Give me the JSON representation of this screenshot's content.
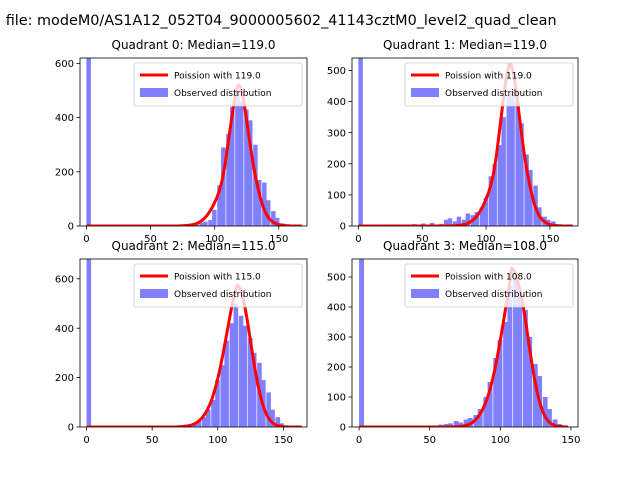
{
  "figure": {
    "suptitle": "n file: modeM0/AS1A12_052T04_9000005602_41143cztM0_level2_quad_clean",
    "colors": {
      "poisson_line": "#ff0000",
      "observed_bars": "#8080ff",
      "axes": "#000000"
    }
  },
  "chart_data": [
    {
      "type": "bar",
      "title": "Quadrant 0: Median=119.0",
      "xlim": [
        -5,
        172
      ],
      "ylim": [
        0,
        620
      ],
      "xticks": [
        0,
        50,
        100,
        150
      ],
      "yticks": [
        0,
        200,
        400,
        600
      ],
      "legend_placement": "top-right",
      "series": [
        {
          "name": "Poission with 119.0",
          "kind": "line",
          "median": 119.0,
          "x": [
            0,
            2,
            4,
            6,
            8,
            10,
            12,
            14,
            16,
            18,
            20,
            22,
            24,
            26,
            28,
            30,
            32,
            34,
            36,
            38,
            40,
            42,
            44,
            46,
            48,
            50,
            52,
            54,
            56,
            58,
            60,
            62,
            64,
            66,
            68,
            70,
            72,
            74,
            76,
            78,
            80,
            82,
            84,
            86,
            88,
            90,
            92,
            94,
            96,
            98,
            100,
            102,
            104,
            106,
            108,
            110,
            112,
            114,
            116,
            118,
            119,
            120,
            122,
            124,
            126,
            128,
            130,
            132,
            134,
            136,
            138,
            140,
            142,
            144,
            146,
            148,
            150,
            152,
            154,
            156,
            158,
            160,
            162,
            164,
            166,
            168
          ],
          "y": [
            0,
            0,
            0,
            0,
            0,
            0,
            0,
            0,
            0,
            0,
            0,
            0,
            0,
            0,
            0,
            0,
            0,
            0,
            0,
            0,
            0,
            0,
            0,
            0,
            0,
            0,
            0,
            0,
            0,
            0,
            0,
            0,
            0,
            0,
            0,
            0,
            0,
            1,
            1,
            2,
            3,
            4,
            6,
            9,
            14,
            20,
            28,
            39,
            52,
            68,
            87,
            108,
            135,
            172,
            224,
            289,
            356,
            420,
            482,
            518,
            520,
            514,
            479,
            420,
            354,
            290,
            229,
            178,
            136,
            98,
            68,
            46,
            30,
            20,
            13,
            8,
            5,
            3,
            2,
            1,
            1,
            0,
            0,
            0,
            0,
            0
          ]
        },
        {
          "name": "Observed distribution",
          "kind": "hist",
          "bin_width": 3.5,
          "bin_starts": [
            0,
            70,
            74,
            77,
            81,
            84,
            88,
            91,
            95,
            98,
            102,
            105,
            109,
            112,
            116,
            119,
            123,
            126,
            130,
            133,
            137,
            140,
            144,
            147,
            151,
            154
          ],
          "counts": [
            620,
            5,
            6,
            4,
            8,
            10,
            12,
            16,
            22,
            60,
            150,
            290,
            340,
            440,
            500,
            460,
            430,
            390,
            300,
            170,
            160,
            95,
            55,
            30,
            10,
            5
          ]
        }
      ]
    },
    {
      "type": "bar",
      "title": "Quadrant 1: Median=119.0",
      "xlim": [
        -5,
        172
      ],
      "ylim": [
        0,
        540
      ],
      "xticks": [
        0,
        50,
        100,
        150
      ],
      "yticks": [
        0,
        100,
        200,
        300,
        400,
        500
      ],
      "legend_placement": "top-right",
      "series": [
        {
          "name": "Poission with 119.0",
          "kind": "line",
          "median": 119.0,
          "x": [
            0,
            2,
            4,
            6,
            8,
            10,
            12,
            14,
            16,
            18,
            20,
            22,
            24,
            26,
            28,
            30,
            32,
            34,
            36,
            38,
            40,
            42,
            44,
            46,
            48,
            50,
            52,
            54,
            56,
            58,
            60,
            62,
            64,
            66,
            68,
            70,
            72,
            74,
            76,
            78,
            80,
            82,
            84,
            86,
            88,
            90,
            92,
            94,
            96,
            98,
            100,
            102,
            104,
            106,
            108,
            110,
            112,
            114,
            116,
            118,
            119,
            120,
            122,
            124,
            126,
            128,
            130,
            132,
            134,
            136,
            138,
            140,
            142,
            144,
            146,
            148,
            150,
            152,
            154,
            156,
            158,
            160,
            162,
            164,
            166,
            168
          ],
          "y": [
            0,
            0,
            0,
            0,
            0,
            0,
            0,
            0,
            0,
            0,
            0,
            0,
            0,
            0,
            0,
            0,
            0,
            0,
            0,
            0,
            0,
            0,
            0,
            0,
            0,
            0,
            0,
            0,
            0,
            0,
            0,
            0,
            0,
            0,
            0,
            0,
            0,
            1,
            1,
            2,
            3,
            4,
            6,
            9,
            14,
            20,
            28,
            39,
            52,
            68,
            87,
            108,
            135,
            172,
            224,
            289,
            356,
            420,
            482,
            518,
            520,
            514,
            479,
            420,
            354,
            290,
            229,
            178,
            136,
            98,
            68,
            46,
            30,
            20,
            13,
            8,
            5,
            3,
            2,
            1,
            1,
            0,
            0,
            0,
            0,
            0
          ]
        },
        {
          "name": "Observed distribution",
          "kind": "hist",
          "bin_width": 3.5,
          "bin_starts": [
            0,
            18,
            25,
            32,
            42,
            49,
            56,
            63,
            67,
            70,
            74,
            77,
            81,
            84,
            88,
            91,
            95,
            98,
            102,
            105,
            109,
            112,
            116,
            119,
            123,
            126,
            130,
            133,
            137,
            140,
            144,
            147,
            151,
            154
          ],
          "counts": [
            540,
            3,
            5,
            4,
            6,
            8,
            10,
            7,
            20,
            25,
            15,
            30,
            20,
            40,
            35,
            45,
            60,
            90,
            160,
            200,
            260,
            350,
            420,
            430,
            400,
            330,
            230,
            180,
            130,
            60,
            30,
            20,
            15,
            5
          ]
        }
      ]
    },
    {
      "type": "bar",
      "title": "Quadrant 2: Median=115.0",
      "xlim": [
        -5,
        168
      ],
      "ylim": [
        0,
        680
      ],
      "xticks": [
        0,
        50,
        100,
        150
      ],
      "yticks": [
        0,
        200,
        400,
        600
      ],
      "legend_placement": "top-right",
      "series": [
        {
          "name": "Poission with 115.0",
          "kind": "line",
          "median": 115.0,
          "x": [
            0,
            2,
            4,
            6,
            8,
            10,
            12,
            14,
            16,
            18,
            20,
            22,
            24,
            26,
            28,
            30,
            32,
            34,
            36,
            38,
            40,
            42,
            44,
            46,
            48,
            50,
            52,
            54,
            56,
            58,
            60,
            62,
            64,
            66,
            68,
            70,
            72,
            74,
            76,
            78,
            80,
            82,
            84,
            86,
            88,
            90,
            92,
            94,
            96,
            98,
            100,
            102,
            104,
            106,
            108,
            110,
            112,
            114,
            115,
            116,
            118,
            120,
            122,
            124,
            126,
            128,
            130,
            132,
            134,
            136,
            138,
            140,
            142,
            144,
            146,
            148,
            150,
            152,
            154,
            156,
            158,
            160,
            162,
            164
          ],
          "y": [
            0,
            0,
            0,
            0,
            0,
            0,
            0,
            0,
            0,
            0,
            0,
            0,
            0,
            0,
            0,
            0,
            0,
            0,
            0,
            0,
            0,
            0,
            0,
            0,
            0,
            0,
            0,
            0,
            0,
            0,
            0,
            0,
            0,
            0,
            0,
            1,
            1,
            2,
            3,
            5,
            8,
            12,
            18,
            26,
            37,
            51,
            69,
            92,
            120,
            155,
            196,
            243,
            296,
            353,
            412,
            470,
            522,
            560,
            575,
            570,
            548,
            505,
            447,
            381,
            312,
            246,
            187,
            137,
            96,
            65,
            42,
            26,
            16,
            9,
            5,
            3,
            1,
            1,
            0,
            0,
            0,
            0,
            0,
            0
          ]
        },
        {
          "name": "Observed distribution",
          "kind": "hist",
          "bin_width": 3.5,
          "bin_starts": [
            0,
            67,
            70,
            74,
            77,
            81,
            84,
            88,
            91,
            95,
            98,
            102,
            105,
            109,
            112,
            116,
            119,
            123,
            126,
            130,
            133,
            137,
            140,
            144,
            147,
            151
          ],
          "counts": [
            680,
            5,
            8,
            10,
            12,
            18,
            25,
            40,
            70,
            110,
            190,
            250,
            350,
            420,
            500,
            450,
            410,
            360,
            300,
            260,
            190,
            140,
            70,
            40,
            15,
            5
          ]
        }
      ]
    },
    {
      "type": "bar",
      "title": "Quadrant 3: Median=108.0",
      "xlim": [
        -5,
        155
      ],
      "ylim": [
        0,
        560
      ],
      "xticks": [
        0,
        50,
        100,
        150
      ],
      "yticks": [
        0,
        100,
        200,
        300,
        400,
        500
      ],
      "legend_placement": "top-right",
      "series": [
        {
          "name": "Poission with 108.0",
          "kind": "line",
          "median": 108.0,
          "x": [
            0,
            2,
            4,
            6,
            8,
            10,
            12,
            14,
            16,
            18,
            20,
            22,
            24,
            26,
            28,
            30,
            32,
            34,
            36,
            38,
            40,
            42,
            44,
            46,
            48,
            50,
            52,
            54,
            56,
            58,
            60,
            62,
            64,
            66,
            68,
            70,
            72,
            74,
            76,
            78,
            80,
            82,
            84,
            86,
            88,
            90,
            92,
            94,
            96,
            98,
            100,
            102,
            104,
            106,
            108,
            110,
            112,
            114,
            116,
            118,
            120,
            122,
            124,
            126,
            128,
            130,
            132,
            134,
            136,
            138,
            140,
            142,
            144,
            146,
            148
          ],
          "y": [
            0,
            0,
            0,
            0,
            0,
            0,
            0,
            0,
            0,
            0,
            0,
            0,
            0,
            0,
            0,
            0,
            0,
            0,
            0,
            0,
            0,
            0,
            0,
            0,
            0,
            0,
            0,
            0,
            0,
            0,
            0,
            0,
            0,
            0,
            1,
            1,
            2,
            4,
            6,
            9,
            14,
            22,
            32,
            46,
            64,
            86,
            114,
            149,
            189,
            237,
            289,
            345,
            403,
            458,
            530,
            520,
            490,
            455,
            410,
            350,
            285,
            222,
            166,
            118,
            80,
            52,
            32,
            19,
            11,
            6,
            3,
            2,
            1,
            0,
            0
          ]
        },
        {
          "name": "Observed distribution",
          "kind": "hist",
          "bin_width": 3.5,
          "bin_starts": [
            0,
            56,
            60,
            63,
            67,
            70,
            74,
            77,
            81,
            84,
            88,
            91,
            95,
            98,
            102,
            105,
            109,
            112,
            116,
            119,
            123,
            126,
            130,
            133,
            137,
            140
          ],
          "counts": [
            560,
            8,
            10,
            12,
            20,
            15,
            25,
            30,
            40,
            60,
            100,
            150,
            230,
            290,
            350,
            470,
            500,
            450,
            390,
            300,
            210,
            170,
            100,
            60,
            25,
            10
          ]
        }
      ]
    }
  ]
}
